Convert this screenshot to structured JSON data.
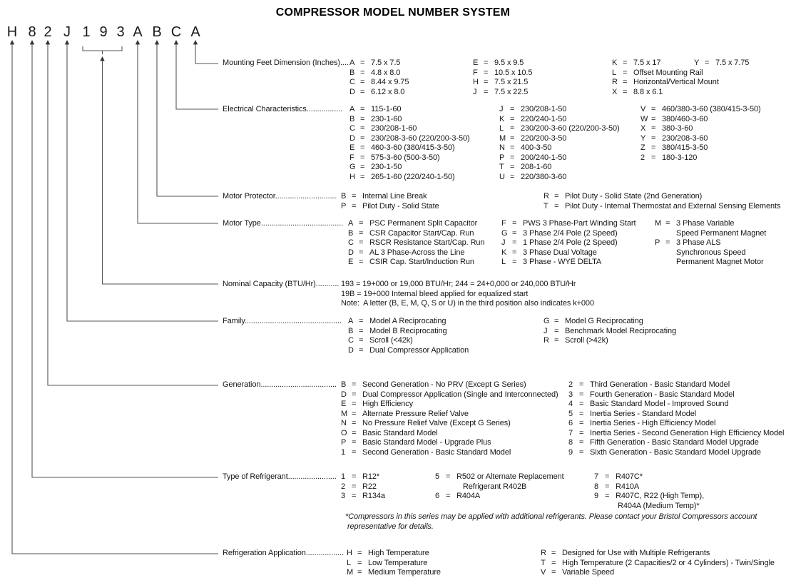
{
  "title": "COMPRESSOR MODEL NUMBER SYSTEM",
  "model_number": {
    "chars": [
      "H",
      "8",
      "2",
      "J",
      "1",
      "9",
      "3",
      "A",
      "B",
      "C",
      "A"
    ]
  },
  "sections": [
    {
      "id": "mounting-feet-dimension",
      "label": "Mounting Feet Dimension (Inches)",
      "leader": "....",
      "columns": [
        {
          "entries": [
            {
              "k": "A",
              "v": "7.5 x 7.5"
            },
            {
              "k": "B",
              "v": "4.8 x 8.0"
            },
            {
              "k": "C",
              "v": "8.44 x 9.75"
            },
            {
              "k": "D",
              "v": "6.12 x 8.0"
            }
          ]
        },
        {
          "entries": [
            {
              "k": "E",
              "v": "9.5 x 9.5"
            },
            {
              "k": "F",
              "v": "10.5 x 10.5"
            },
            {
              "k": "H",
              "v": "7.5 x 21.5"
            },
            {
              "k": "J",
              "v": "7.5 x 22.5"
            }
          ]
        },
        {
          "entries": [
            {
              "k": "K",
              "v": "7.5 x 17"
            },
            {
              "k": "L",
              "v": "Offset Mounting Rail"
            },
            {
              "k": "R",
              "v": "Horizontal/Vertical Mount"
            },
            {
              "k": "X",
              "v": "8.8 x 6.1"
            }
          ]
        },
        {
          "entries": [
            {
              "k": "Y",
              "v": "7.5 x 7.75"
            }
          ]
        }
      ]
    },
    {
      "id": "electrical-characteristics",
      "label": "Electrical Characteristics",
      "leader": ".................",
      "columns": [
        {
          "entries": [
            {
              "k": "A",
              "v": "115-1-60"
            },
            {
              "k": "B",
              "v": "230-1-60"
            },
            {
              "k": "C",
              "v": "230/208-1-60"
            },
            {
              "k": "D",
              "v": "230/208-3-60 (220/200-3-50)"
            },
            {
              "k": "E",
              "v": "460-3-60 (380/415-3-50)"
            },
            {
              "k": "F",
              "v": "575-3-60 (500-3-50)"
            },
            {
              "k": "G",
              "v": "230-1-50"
            },
            {
              "k": "H",
              "v": "265-1-60 (220/240-1-50)"
            }
          ]
        },
        {
          "entries": [
            {
              "k": "J",
              "v": "230/208-1-50"
            },
            {
              "k": "K",
              "v": "220/240-1-50"
            },
            {
              "k": "L",
              "v": "230/200-3-60 (220/200-3-50)"
            },
            {
              "k": "M",
              "v": "220/200-3-50"
            },
            {
              "k": "N",
              "v": "400-3-50"
            },
            {
              "k": "P",
              "v": "200/240-1-50"
            },
            {
              "k": "T",
              "v": "208-1-60"
            },
            {
              "k": "U",
              "v": "220/380-3-60"
            }
          ]
        },
        {
          "entries": [
            {
              "k": "V",
              "v": "460/380-3-60 (380/415-3-50)"
            },
            {
              "k": "W",
              "v": "380/460-3-60"
            },
            {
              "k": "X",
              "v": "380-3-60"
            },
            {
              "k": "Y",
              "v": "230/208-3-60"
            },
            {
              "k": "Z",
              "v": "380/415-3-50"
            },
            {
              "k": "2",
              "v": "180-3-120"
            }
          ]
        }
      ]
    },
    {
      "id": "motor-protector",
      "label": "Motor Protector",
      "leader": ".............................",
      "columns": [
        {
          "entries": [
            {
              "k": "B",
              "v": "Internal Line Break"
            },
            {
              "k": "P",
              "v": "Pilot Duty - Solid State"
            }
          ]
        },
        {
          "entries": [
            {
              "k": "R",
              "v": "Pilot Duty - Solid State (2nd Generation)"
            },
            {
              "k": "T",
              "v": "Pilot Duty - Internal Thermostat and External Sensing Elements"
            }
          ]
        }
      ]
    },
    {
      "id": "motor-type",
      "label": "Motor Type",
      "leader": ".......................................",
      "columns": [
        {
          "entries": [
            {
              "k": "A",
              "v": "PSC Permanent Split Capacitor"
            },
            {
              "k": "B",
              "v": "CSR Capacitor Start/Cap. Run"
            },
            {
              "k": "C",
              "v": "RSCR Resistance Start/Cap. Run"
            },
            {
              "k": "D",
              "v": "AL 3 Phase-Across the Line"
            },
            {
              "k": "E",
              "v": "CSIR Cap. Start/Induction Run"
            }
          ]
        },
        {
          "entries": [
            {
              "k": "F",
              "v": "PWS 3 Phase-Part Winding Start"
            },
            {
              "k": "G",
              "v": "3 Phase 2/4 Pole (2 Speed)"
            },
            {
              "k": "J",
              "v": "1 Phase 2/4 Pole (2 Speed)"
            },
            {
              "k": "K",
              "v": "3 Phase Dual Voltage"
            },
            {
              "k": "L",
              "v": "3 Phase - WYE DELTA"
            }
          ]
        },
        {
          "entries": [
            {
              "k": "M",
              "v": "3 Phase Variable\nSpeed Permanent Magnet"
            },
            {
              "k": "P",
              "v": "3 Phase ALS\nSynchronous Speed\nPermanent Magnet Motor"
            }
          ]
        }
      ]
    },
    {
      "id": "nominal-capacity",
      "label": "Nominal Capacity (BTU/Hr)",
      "leader": "...........",
      "columns": [
        {
          "entries": [
            {
              "text": "193 = 19+000 or 19,000 BTU/Hr; 244 = 24+0,000 or 240,000 BTU/Hr"
            },
            {
              "text": "19B = 19+000 Internal bleed applied for equalized start"
            },
            {
              "text": "Note:  A letter (B, E, M, Q, S or U) in the third position also indicates k+000"
            }
          ]
        }
      ]
    },
    {
      "id": "family",
      "label": "Family",
      "leader": "..............................................",
      "columns": [
        {
          "entries": [
            {
              "k": "A",
              "v": "Model A Reciprocating"
            },
            {
              "k": "B",
              "v": "Model B Reciprocating"
            },
            {
              "k": "C",
              "v": "Scroll (<42k)"
            },
            {
              "k": "D",
              "v": "Dual Compressor Application"
            }
          ]
        },
        {
          "entries": [
            {
              "k": "G",
              "v": "Model G Reciprocating"
            },
            {
              "k": "J",
              "v": "Benchmark Model Reciprocating"
            },
            {
              "k": "R",
              "v": "Scroll (>42k)"
            }
          ]
        }
      ]
    },
    {
      "id": "generation",
      "label": "Generation",
      "leader": "....................................",
      "columns": [
        {
          "entries": [
            {
              "k": "B",
              "v": "Second Generation - No PRV (Except G Series)"
            },
            {
              "k": "D",
              "v": "Dual Compressor Application (Single and Interconnected)"
            },
            {
              "k": "E",
              "v": "High Efficiency"
            },
            {
              "k": "M",
              "v": "Alternate Pressure Relief Valve"
            },
            {
              "k": "N",
              "v": "No Pressure Relief Valve (Except G Series)"
            },
            {
              "k": "O",
              "v": "Basic Standard Model"
            },
            {
              "k": "P",
              "v": "Basic Standard Model - Upgrade Plus"
            },
            {
              "k": "1",
              "v": "Second Generation - Basic Standard Model"
            }
          ]
        },
        {
          "entries": [
            {
              "k": "2",
              "v": "Third Generation - Basic Standard Model"
            },
            {
              "k": "3",
              "v": "Fourth Generation - Basic Standard Model"
            },
            {
              "k": "4",
              "v": "Basic Standard Model - Improved Sound"
            },
            {
              "k": "5",
              "v": "Inertia Series - Standard Model"
            },
            {
              "k": "6",
              "v": "Inertia Series - High Efficiency Model"
            },
            {
              "k": "7",
              "v": "Inertia Series - Second Generation High Efficiency Model"
            },
            {
              "k": "8",
              "v": "Fifth Generation - Basic Standard Model Upgrade"
            },
            {
              "k": "9",
              "v": "Sixth Generation - Basic Standard Model Upgrade"
            }
          ]
        }
      ]
    },
    {
      "id": "type-of-refrigerant",
      "label": "Type of Refrigerant",
      "leader": ".......................",
      "columns": [
        {
          "entries": [
            {
              "k": "1",
              "v": "R12*"
            },
            {
              "k": "2",
              "v": "R22"
            },
            {
              "k": "3",
              "v": "R134a"
            }
          ]
        },
        {
          "entries": [
            {
              "k": "5",
              "v": "R502 or Alternate Replacement\n   Refrigerant R402B"
            },
            {
              "k": "6",
              "v": "R404A"
            }
          ]
        },
        {
          "entries": [
            {
              "k": "7",
              "v": "R407C*"
            },
            {
              "k": "8",
              "v": "R410A"
            },
            {
              "k": "9",
              "v": "R407C, R22 (High Temp),\n R404A (Medium Temp)*"
            }
          ]
        }
      ],
      "footnote": "*Compressors in this series may be applied with additional refrigerants. Please contact your Bristol Compressors account\n representative for details."
    },
    {
      "id": "refrigeration-application",
      "label": "Refrigeration Application",
      "leader": "..................",
      "columns": [
        {
          "entries": [
            {
              "k": "H",
              "v": "High Temperature"
            },
            {
              "k": "L",
              "v": "Low Temperature"
            },
            {
              "k": "M",
              "v": "Medium Temperature"
            }
          ]
        },
        {
          "entries": [
            {
              "k": "R",
              "v": "Designed for Use with Multiple Refrigerants"
            },
            {
              "k": "T",
              "v": "High Temperature (2 Capacities/2 or 4 Cylinders) - Twin/Single"
            },
            {
              "k": "V",
              "v": "Variable Speed"
            }
          ]
        }
      ]
    }
  ]
}
